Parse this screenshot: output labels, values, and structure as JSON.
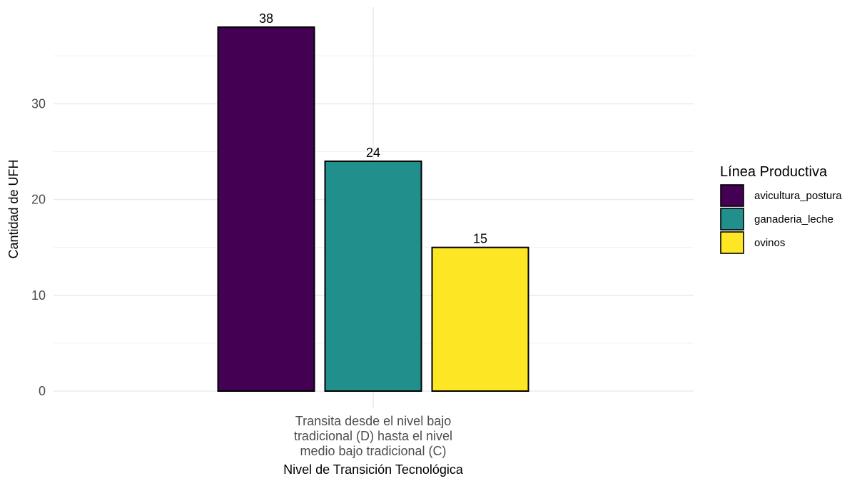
{
  "chart_data": {
    "type": "bar",
    "categories": [
      "Transita desde el nivel bajo tradicional (D) hasta el nivel medio bajo tradicional (C)"
    ],
    "category_label_lines": [
      "Transita desde el nivel bajo",
      "tradicional (D) hasta el nivel",
      "medio bajo tradicional (C)"
    ],
    "series": [
      {
        "name": "avicultura_postura",
        "values": [
          38
        ],
        "color": "#440154"
      },
      {
        "name": "ganaderia_leche",
        "values": [
          24
        ],
        "color": "#21908C"
      },
      {
        "name": "ovinos",
        "values": [
          15
        ],
        "color": "#FDE725"
      }
    ],
    "xlabel": "Nivel de Transición Tecnológica",
    "ylabel": "Cantidad de UFH",
    "ylim": [
      0,
      40
    ],
    "yticks": [
      0,
      10,
      20,
      30
    ],
    "grid": true,
    "legend": {
      "title": "Línea Productiva",
      "placement": "right"
    }
  }
}
